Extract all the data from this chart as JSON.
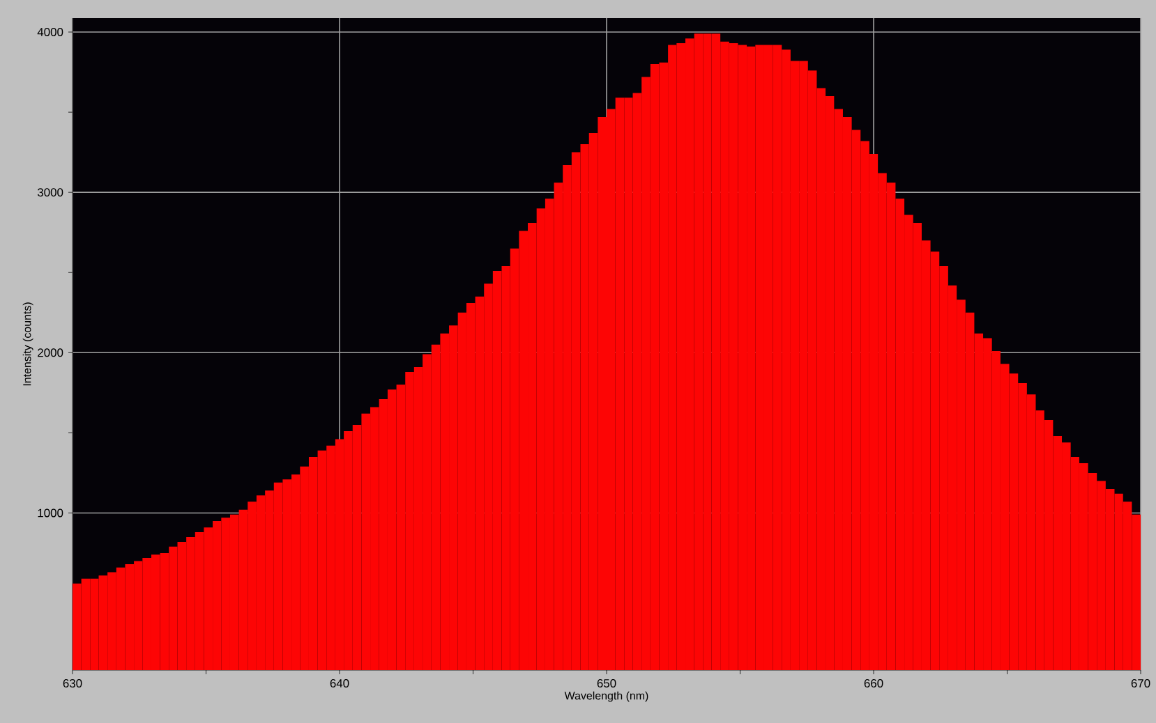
{
  "chart_data": {
    "type": "histogram",
    "xlabel": "Wavelength (nm)",
    "ylabel": "Intensity (counts)",
    "bins": [
      630,
      630.33,
      630.66,
      630.98,
      631.31,
      631.64,
      631.97,
      632.3,
      632.62,
      632.95,
      633.28,
      633.61,
      633.93,
      634.26,
      634.59,
      634.92,
      635.25,
      635.57,
      635.9,
      636.23,
      636.56,
      636.89,
      637.21,
      637.54,
      637.87,
      638.2,
      638.52,
      638.85,
      639.18,
      639.51,
      639.84,
      640.16,
      640.49,
      640.82,
      641.15,
      641.48,
      641.8,
      642.13,
      642.46,
      642.79,
      643.11,
      643.44,
      643.77,
      644.1,
      644.43,
      644.75,
      645.08,
      645.41,
      645.74,
      646.07,
      646.39,
      646.72,
      647.05,
      647.38,
      647.7,
      648.03,
      648.36,
      648.69,
      649.02,
      649.34,
      649.67,
      650.0,
      650.33,
      650.66,
      650.98,
      651.31,
      651.64,
      651.97,
      652.3,
      652.62,
      652.95,
      653.28,
      653.61,
      653.93,
      654.26,
      654.59,
      654.92,
      655.25,
      655.57,
      655.9,
      656.23,
      656.56,
      656.89,
      657.21,
      657.54,
      657.87,
      658.2,
      658.52,
      658.85,
      659.18,
      659.51,
      659.84,
      660.16,
      660.49,
      660.82,
      661.15,
      661.48,
      661.8,
      662.13,
      662.46,
      662.79,
      663.11,
      663.44,
      663.77,
      664.1,
      664.43,
      664.75,
      665.08,
      665.41,
      665.74,
      666.07,
      666.39,
      666.72,
      667.05,
      667.38,
      667.7,
      668.03,
      668.36,
      668.69,
      669.02,
      669.34,
      669.67,
      670.0
    ],
    "values": [
      560,
      590,
      590,
      610,
      630,
      660,
      680,
      700,
      720,
      740,
      750,
      790,
      820,
      850,
      880,
      910,
      950,
      970,
      990,
      1020,
      1070,
      1110,
      1140,
      1190,
      1210,
      1240,
      1290,
      1350,
      1390,
      1420,
      1460,
      1510,
      1550,
      1620,
      1660,
      1710,
      1770,
      1800,
      1880,
      1910,
      1990,
      2050,
      2120,
      2170,
      2250,
      2310,
      2350,
      2430,
      2510,
      2540,
      2650,
      2760,
      2810,
      2900,
      2960,
      3060,
      3170,
      3250,
      3300,
      3370,
      3470,
      3520,
      3590,
      3590,
      3620,
      3720,
      3800,
      3810,
      3920,
      3930,
      3960,
      3990,
      3990,
      3990,
      3940,
      3930,
      3920,
      3910,
      3920,
      3920,
      3920,
      3890,
      3820,
      3820,
      3760,
      3650,
      3600,
      3520,
      3470,
      3390,
      3320,
      3240,
      3120,
      3060,
      2960,
      2860,
      2810,
      2700,
      2630,
      2540,
      2420,
      2330,
      2250,
      2120,
      2090,
      2010,
      1930,
      1870,
      1810,
      1740,
      1640,
      1580,
      1480,
      1440,
      1350,
      1310,
      1250,
      1200,
      1150,
      1120,
      1070,
      990
    ],
    "color": "#fd0505",
    "xlim": [
      630,
      670
    ],
    "ylim": [
      20,
      4087
    ],
    "xticks": [
      630,
      {
        "value": 635,
        "label": null
      },
      640,
      {
        "value": 645,
        "label": null
      },
      650,
      {
        "value": 655,
        "label": null
      },
      660,
      {
        "value": 665,
        "label": null
      },
      670
    ],
    "yticks": [
      1000,
      {
        "value": 1500,
        "label": null
      },
      2000,
      {
        "value": 2500,
        "label": null
      },
      3000,
      {
        "value": 3500,
        "label": null
      },
      4000
    ],
    "grid": true
  }
}
